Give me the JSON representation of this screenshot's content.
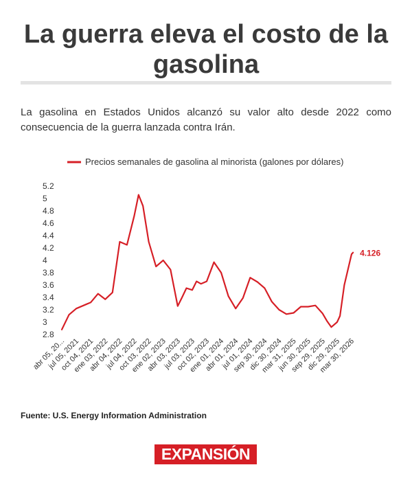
{
  "header": {
    "title": "La guerra eleva el costo de la gasolina",
    "subtitle": "La gasolina en Estados Unidos alcanzó su valor alto desde 2022 como consecuencia de la guerra lanzada contra Irán."
  },
  "footer": {
    "source": "Fuente: U.S. Energy Information Administration",
    "logo_text": "EXPANSIÓN"
  },
  "colors": {
    "series": "#d61f26",
    "axis_text": "#333333",
    "brand": "#d61f26"
  },
  "chart_data": {
    "type": "line",
    "title": "",
    "xlabel": "",
    "ylabel": "",
    "ylim": [
      2.8,
      5.2
    ],
    "yticks": [
      "2.8",
      "3",
      "3.2",
      "3.4",
      "3.6",
      "3.8",
      "4",
      "4.2",
      "4.4",
      "4.6",
      "4.8",
      "5",
      "5.2"
    ],
    "grid": false,
    "legend_position": "top-center",
    "x_tick_labels": [
      "abr 05, 20...",
      "jul 05, 2021",
      "oct 04, 2021",
      "ene 03, 2022",
      "abr 04, 2022",
      "jul 04, 2022",
      "oct 03, 2022",
      "ene 02, 2023",
      "abr 03, 2023",
      "jul 03, 2023",
      "oct 02, 2023",
      "ene 01, 2024",
      "abr 01, 2024",
      "jul 01, 2024",
      "sep 30, 2024",
      "dic 30, 2024",
      "mar 31, 2025",
      "jun 30, 2025",
      "sep 29, 2025",
      "dic 29, 2025",
      "mar 30, 2026"
    ],
    "series": [
      {
        "name": "Precios semanales de gasolina al minorista (galones por dólares)",
        "last_value_label": "4.126",
        "x": [
          0,
          0.5,
          1,
          1.5,
          2,
          2.5,
          3,
          3.5,
          4,
          4.5,
          5,
          5.3,
          5.6,
          6,
          6.5,
          7,
          7.5,
          8,
          8.3,
          8.6,
          9,
          9.3,
          9.6,
          10,
          10.5,
          11,
          11.5,
          12,
          12.5,
          13,
          13.5,
          14,
          14.5,
          15,
          15.5,
          16,
          16.5,
          17,
          17.5,
          18,
          18.3,
          18.6,
          19,
          19.2,
          19.5,
          20,
          20.1
        ],
        "values": [
          2.88,
          3.12,
          3.22,
          3.27,
          3.32,
          3.46,
          3.37,
          3.48,
          4.3,
          4.25,
          4.72,
          5.06,
          4.88,
          4.3,
          3.9,
          4.0,
          3.85,
          3.26,
          3.4,
          3.55,
          3.52,
          3.66,
          3.62,
          3.66,
          3.97,
          3.8,
          3.42,
          3.22,
          3.39,
          3.72,
          3.65,
          3.55,
          3.33,
          3.2,
          3.13,
          3.15,
          3.25,
          3.25,
          3.27,
          3.14,
          3.02,
          2.92,
          3.0,
          3.1,
          3.6,
          4.1,
          4.126
        ]
      }
    ]
  }
}
